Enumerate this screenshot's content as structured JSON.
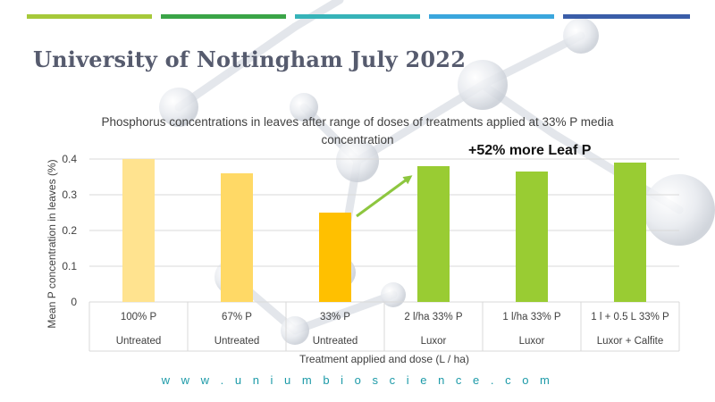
{
  "header": {
    "title": "University of Nottingham July 2022",
    "color_bars": [
      "#a6c93a",
      "#3aa447",
      "#36b3b8",
      "#3aa6dd",
      "#3a5da8"
    ]
  },
  "footer": {
    "website": "w w w . u n i u m b i o s c i e n c e . c o m"
  },
  "chart_data": {
    "type": "bar",
    "title": "Phosphorus concentrations in leaves after range of doses of treatments applied at 33% P media concentration",
    "xlabel": "Treatment applied and  dose (L / ha)",
    "ylabel": "Mean P concentration in leaves (%)",
    "ylim": [
      0,
      0.4
    ],
    "yticks": [
      "0",
      "0.1",
      "0.2",
      "0.3",
      "0.4"
    ],
    "grid": true,
    "categories": [
      {
        "line1": "100% P",
        "line2": "Untreated"
      },
      {
        "line1": "67% P",
        "line2": "Untreated"
      },
      {
        "line1": "33% P",
        "line2": "Untreated"
      },
      {
        "line1": "2 l/ha 33% P",
        "line2": "Luxor"
      },
      {
        "line1": "1 l/ha 33% P",
        "line2": "Luxor"
      },
      {
        "line1": "1 l + 0.5 L 33% P",
        "line2": "Luxor +  Calfite"
      }
    ],
    "values": [
      0.4,
      0.36,
      0.25,
      0.38,
      0.365,
      0.39
    ],
    "bar_colors": [
      "#ffe38f",
      "#ffd966",
      "#ffc000",
      "#99cc33",
      "#99cc33",
      "#99cc33"
    ],
    "annotation": "+52% more Leaf P",
    "arrow_color": "#8dc63f"
  }
}
